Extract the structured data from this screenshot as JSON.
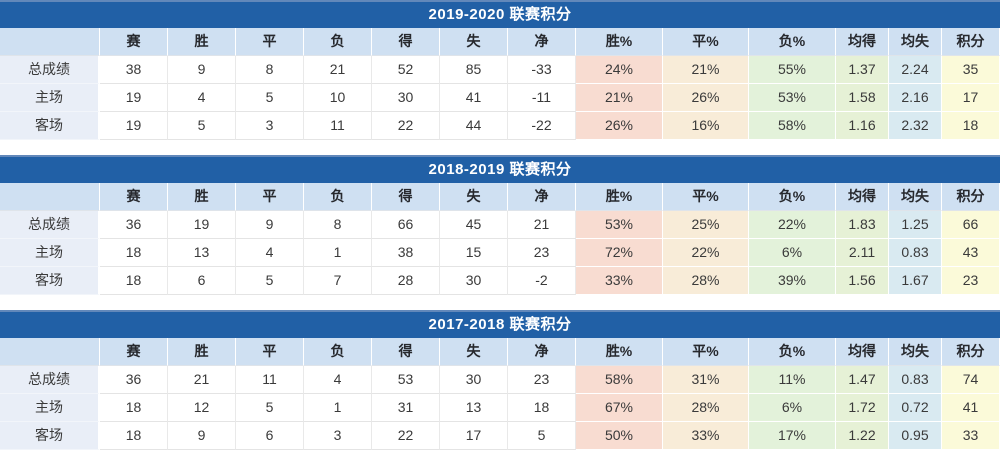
{
  "colors": {
    "title_bar_bg": "#2160a6",
    "title_bar_top": "#6288ba",
    "title_text": "#ffffff",
    "header_bg": "#cfe0f2",
    "label_bg": "#e9eef7",
    "win_pct_bg": "#f8dcd1",
    "draw_pct_bg": "#f8ecd8",
    "loss_pct_bg": "#e3f2da",
    "avg_for_bg": "#e6f1d6",
    "avg_against_bg": "#d9eaf1",
    "points_bg": "#fbfad9"
  },
  "columns": [
    "",
    "赛",
    "胜",
    "平",
    "负",
    "得",
    "失",
    "净",
    "胜%",
    "平%",
    "负%",
    "均得",
    "均失",
    "积分"
  ],
  "tables": [
    {
      "title": "2019-2020 联赛积分",
      "rows": [
        {
          "label": "总成绩",
          "values": [
            "38",
            "9",
            "8",
            "21",
            "52",
            "85",
            "-33",
            "24%",
            "21%",
            "55%",
            "1.37",
            "2.24",
            "35"
          ]
        },
        {
          "label": "主场",
          "values": [
            "19",
            "4",
            "5",
            "10",
            "30",
            "41",
            "-11",
            "21%",
            "26%",
            "53%",
            "1.58",
            "2.16",
            "17"
          ]
        },
        {
          "label": "客场",
          "values": [
            "19",
            "5",
            "3",
            "11",
            "22",
            "44",
            "-22",
            "26%",
            "16%",
            "58%",
            "1.16",
            "2.32",
            "18"
          ]
        }
      ]
    },
    {
      "title": "2018-2019 联赛积分",
      "rows": [
        {
          "label": "总成绩",
          "values": [
            "36",
            "19",
            "9",
            "8",
            "66",
            "45",
            "21",
            "53%",
            "25%",
            "22%",
            "1.83",
            "1.25",
            "66"
          ]
        },
        {
          "label": "主场",
          "values": [
            "18",
            "13",
            "4",
            "1",
            "38",
            "15",
            "23",
            "72%",
            "22%",
            "6%",
            "2.11",
            "0.83",
            "43"
          ]
        },
        {
          "label": "客场",
          "values": [
            "18",
            "6",
            "5",
            "7",
            "28",
            "30",
            "-2",
            "33%",
            "28%",
            "39%",
            "1.56",
            "1.67",
            "23"
          ]
        }
      ]
    },
    {
      "title": "2017-2018 联赛积分",
      "rows": [
        {
          "label": "总成绩",
          "values": [
            "36",
            "21",
            "11",
            "4",
            "53",
            "30",
            "23",
            "58%",
            "31%",
            "11%",
            "1.47",
            "0.83",
            "74"
          ]
        },
        {
          "label": "主场",
          "values": [
            "18",
            "12",
            "5",
            "1",
            "31",
            "13",
            "18",
            "67%",
            "28%",
            "6%",
            "1.72",
            "0.72",
            "41"
          ]
        },
        {
          "label": "客场",
          "values": [
            "18",
            "9",
            "6",
            "3",
            "22",
            "17",
            "5",
            "50%",
            "33%",
            "17%",
            "1.22",
            "0.95",
            "33"
          ]
        }
      ]
    }
  ]
}
